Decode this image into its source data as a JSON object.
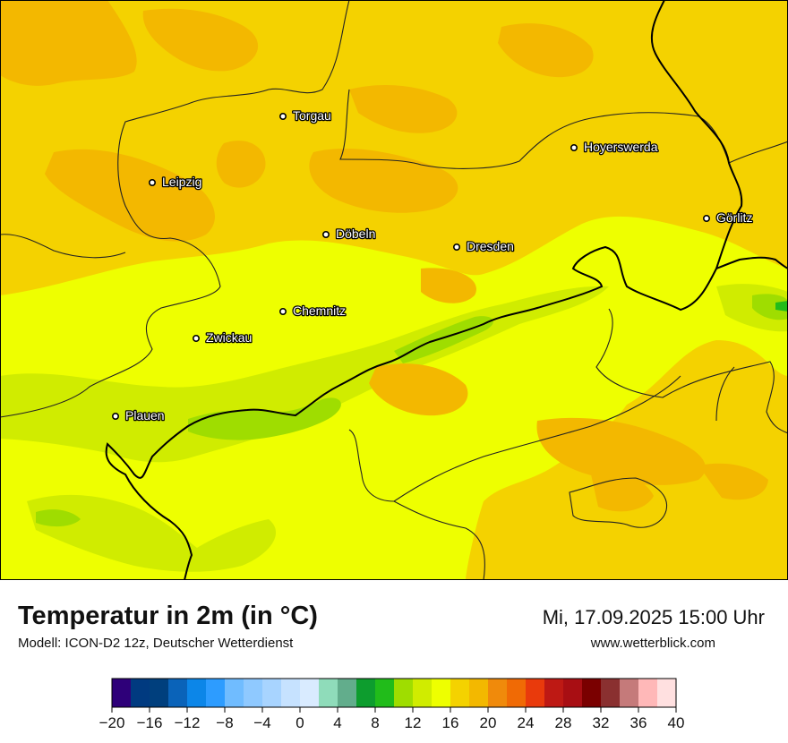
{
  "header": {
    "title": "Temperatur in 2m (in °C)",
    "subtitle": "Modell: ICON-D2 12z, Deutscher Wetterdienst",
    "datetime": "Mi, 17.09.2025 15:00 Uhr",
    "website": "www.wetterblick.com"
  },
  "cities": [
    {
      "name": "Torgau"
    },
    {
      "name": "Hoyerswerda"
    },
    {
      "name": "Leipzig"
    },
    {
      "name": "Görlitz"
    },
    {
      "name": "Döbeln"
    },
    {
      "name": "Dresden"
    },
    {
      "name": "Chemnitz"
    },
    {
      "name": "Zwickau"
    },
    {
      "name": "Plauen"
    }
  ],
  "legend": {
    "min": -20,
    "max": 40,
    "step": 2,
    "colors": [
      "#2e0079",
      "#003a80",
      "#003f7d",
      "#0a63b9",
      "#0c86e8",
      "#2d9cff",
      "#70bcff",
      "#8fc9ff",
      "#a8d4ff",
      "#c6e2ff",
      "#d9ebff",
      "#8fdcba",
      "#62ad8c",
      "#0d9d2e",
      "#21bc1a",
      "#9fdd00",
      "#d0ec00",
      "#eeff00",
      "#f4d200",
      "#f3b800",
      "#f08a0b",
      "#f06a05",
      "#e93a0c",
      "#be1914",
      "#a80e13",
      "#7a0000",
      "#8a3030",
      "#c57a7a",
      "#ffb8b8",
      "#ffe0e0"
    ],
    "tick_labels": [
      "−20",
      "−16",
      "−12",
      "−8",
      "−4",
      "0",
      "4",
      "8",
      "12",
      "16",
      "20",
      "24",
      "28",
      "32",
      "36",
      "40"
    ]
  },
  "map_colors": {
    "t16": "#eeff00",
    "t17": "#f4d200",
    "t19": "#f3b800",
    "t13": "#d0ec00",
    "t11": "#9fdd00",
    "t7": "#21bc1a",
    "border": "#000000",
    "district": "#222222"
  }
}
